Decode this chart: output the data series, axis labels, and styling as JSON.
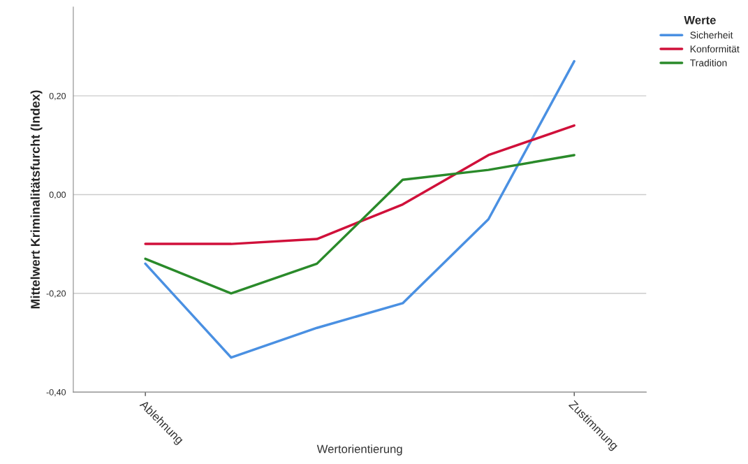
{
  "chart_data": {
    "type": "line",
    "xlabel": "Wertorientierung",
    "ylabel": "Mittelwert Kriminalitätsfurcht (Index)",
    "legend_title": "Werte",
    "categories": [
      "Ablehnung",
      null,
      null,
      null,
      null,
      "Zustimmung"
    ],
    "series": [
      {
        "name": "Sicherheit",
        "color": "#4a90e2",
        "values": [
          -0.14,
          -0.33,
          -0.27,
          -0.22,
          -0.05,
          0.27
        ]
      },
      {
        "name": "Konformität",
        "color": "#d0103a",
        "values": [
          -0.1,
          -0.1,
          -0.09,
          -0.02,
          0.08,
          0.14
        ]
      },
      {
        "name": "Tradition",
        "color": "#2a8a2a",
        "values": [
          -0.13,
          -0.2,
          -0.14,
          0.03,
          0.05,
          0.08
        ]
      }
    ],
    "ylim": [
      -0.4,
      0.38
    ],
    "yticks": [
      {
        "value": -0.4,
        "label": "-0,40"
      },
      {
        "value": -0.2,
        "label": "-0,20"
      },
      {
        "value": 0.0,
        "label": "0,00"
      },
      {
        "value": 0.2,
        "label": "0,20"
      }
    ],
    "grid": "y",
    "legend": "top right",
    "marker": "none",
    "line_style": "solid"
  }
}
